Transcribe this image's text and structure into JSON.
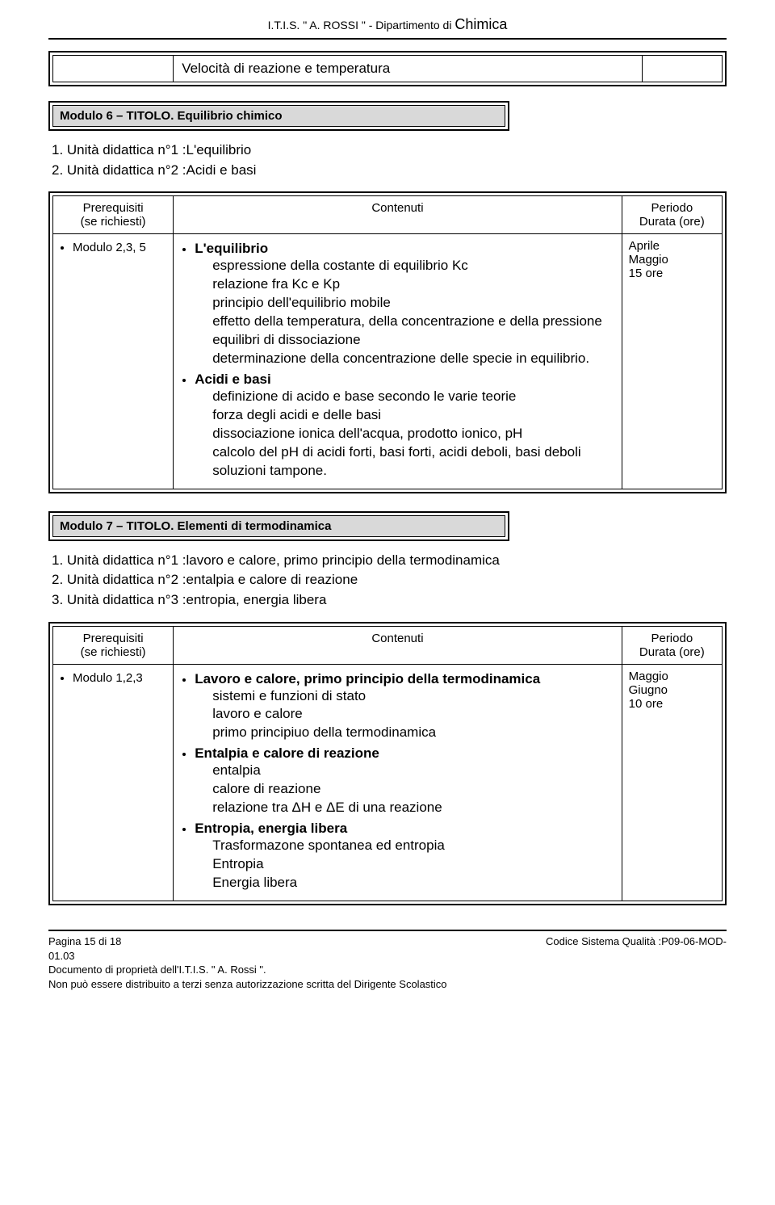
{
  "header": {
    "left": "I.T.I.S. \" A.  ROSSI \"   -   Dipartimento di",
    "right": "Chimica"
  },
  "intro_box": {
    "text": "Velocità di reazione e temperatura"
  },
  "module6": {
    "title": "Modulo 6 – TITOLO. Equilibrio chimico",
    "units": [
      "1. Unità didattica n°1 :L'equilibrio",
      "2. Unità didattica n°2 :Acidi e basi"
    ],
    "headers": {
      "prereq": "Prerequisiti\n(se richiesti)",
      "content": "Contenuti",
      "period": "Periodo\nDurata (ore)"
    },
    "prereq_item": "Modulo 2,3, 5",
    "topics": [
      {
        "head": "L'equilibrio",
        "subs": [
          "espressione della costante di equilibrio Kc",
          "relazione fra Kc e Kp",
          "principio dell'equilibrio mobile",
          "effetto della temperatura, della concentrazione e della pressione",
          "equilibri di dissociazione",
          "determinazione della concentrazione delle specie in equilibrio."
        ]
      },
      {
        "head": "Acidi e basi",
        "subs": [
          "definizione di acido e base secondo le varie teorie",
          "forza degli acidi e delle basi",
          "dissociazione ionica dell'acqua, prodotto ionico, pH",
          "calcolo del pH di acidi forti, basi forti, acidi deboli, basi deboli",
          "soluzioni tampone."
        ]
      }
    ],
    "period": [
      "Aprile",
      "Maggio",
      "15 ore"
    ]
  },
  "module7": {
    "title": "Modulo 7 – TITOLO. Elementi di termodinamica",
    "units": [
      "1. Unità didattica n°1 :lavoro e calore, primo principio della termodinamica",
      "2. Unità didattica n°2 :entalpia e calore di reazione",
      "3. Unità didattica n°3 :entropia, energia libera"
    ],
    "headers": {
      "prereq": "Prerequisiti\n(se richiesti)",
      "content": "Contenuti",
      "period": "Periodo\nDurata (ore)"
    },
    "prereq_item": "Modulo 1,2,3",
    "topics": [
      {
        "head": "Lavoro e calore, primo principio della termodinamica",
        "subs": [
          "sistemi e funzioni di stato",
          "lavoro e calore",
          "primo principiuo della termodinamica"
        ]
      },
      {
        "head": "Entalpia e calore di reazione",
        "subs": [
          "entalpia",
          "calore di reazione",
          "relazione tra ΔH e ΔE di una reazione"
        ]
      },
      {
        "head": "Entropia, energia libera",
        "subs": [
          "Trasformazone spontanea ed entropia",
          "Entropia",
          "Energia libera"
        ]
      }
    ],
    "period": [
      "Maggio",
      "Giugno",
      "10 ore"
    ]
  },
  "footer": {
    "page": "Pagina 15 di 18",
    "code": "Codice Sistema Qualità :P09-06-MOD-",
    "date": "01.03",
    "owner": "Documento di proprietà dell'I.T.I.S.   \" A. Rossi \".",
    "dist": "Non può essere distribuito a terzi senza autorizzazione scritta del Dirigente Scolastico"
  }
}
